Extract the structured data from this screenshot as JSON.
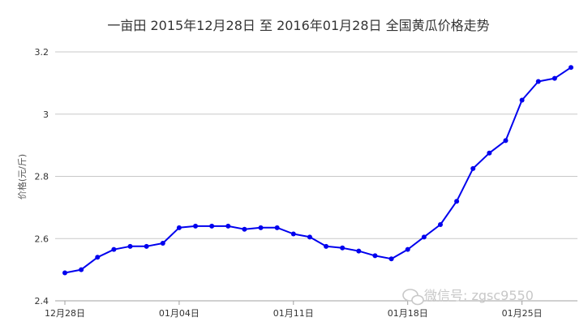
{
  "chart_data": {
    "type": "line",
    "title": "一亩田 2015年12月28日 至 2016年01月28日 全国黄瓜价格走势",
    "ylabel": "价格(元/斤)",
    "xlabel": "",
    "ylim": [
      2.4,
      3.2
    ],
    "yticks": [
      2.4,
      2.6,
      2.8,
      3,
      3.2
    ],
    "xticks": [
      "12月28日",
      "01月04日",
      "01月11日",
      "01月18日",
      "01月25日"
    ],
    "grid": true,
    "legend": "none",
    "x": [
      "2015-12-28",
      "2015-12-29",
      "2015-12-30",
      "2015-12-31",
      "2016-01-01",
      "2016-01-02",
      "2016-01-03",
      "2016-01-04",
      "2016-01-05",
      "2016-01-06",
      "2016-01-07",
      "2016-01-08",
      "2016-01-09",
      "2016-01-10",
      "2016-01-11",
      "2016-01-12",
      "2016-01-13",
      "2016-01-14",
      "2016-01-15",
      "2016-01-16",
      "2016-01-17",
      "2016-01-18",
      "2016-01-19",
      "2016-01-20",
      "2016-01-21",
      "2016-01-22",
      "2016-01-23",
      "2016-01-24",
      "2016-01-25",
      "2016-01-26",
      "2016-01-27",
      "2016-01-28"
    ],
    "series": [
      {
        "values": [
          2.49,
          2.5,
          2.54,
          2.565,
          2.575,
          2.575,
          2.585,
          2.635,
          2.64,
          2.64,
          2.64,
          2.63,
          2.635,
          2.635,
          2.615,
          2.605,
          2.575,
          2.57,
          2.56,
          2.545,
          2.535,
          2.565,
          2.605,
          2.645,
          2.72,
          2.825,
          2.875,
          2.915,
          3.045,
          3.105,
          3.115,
          3.15
        ],
        "color": "#0000ee"
      }
    ]
  },
  "watermark": "微信号: zgsc9550",
  "colors": {
    "grid": "#c8c8c8",
    "axis": "#a0a0a0",
    "line": "#0000ee"
  }
}
